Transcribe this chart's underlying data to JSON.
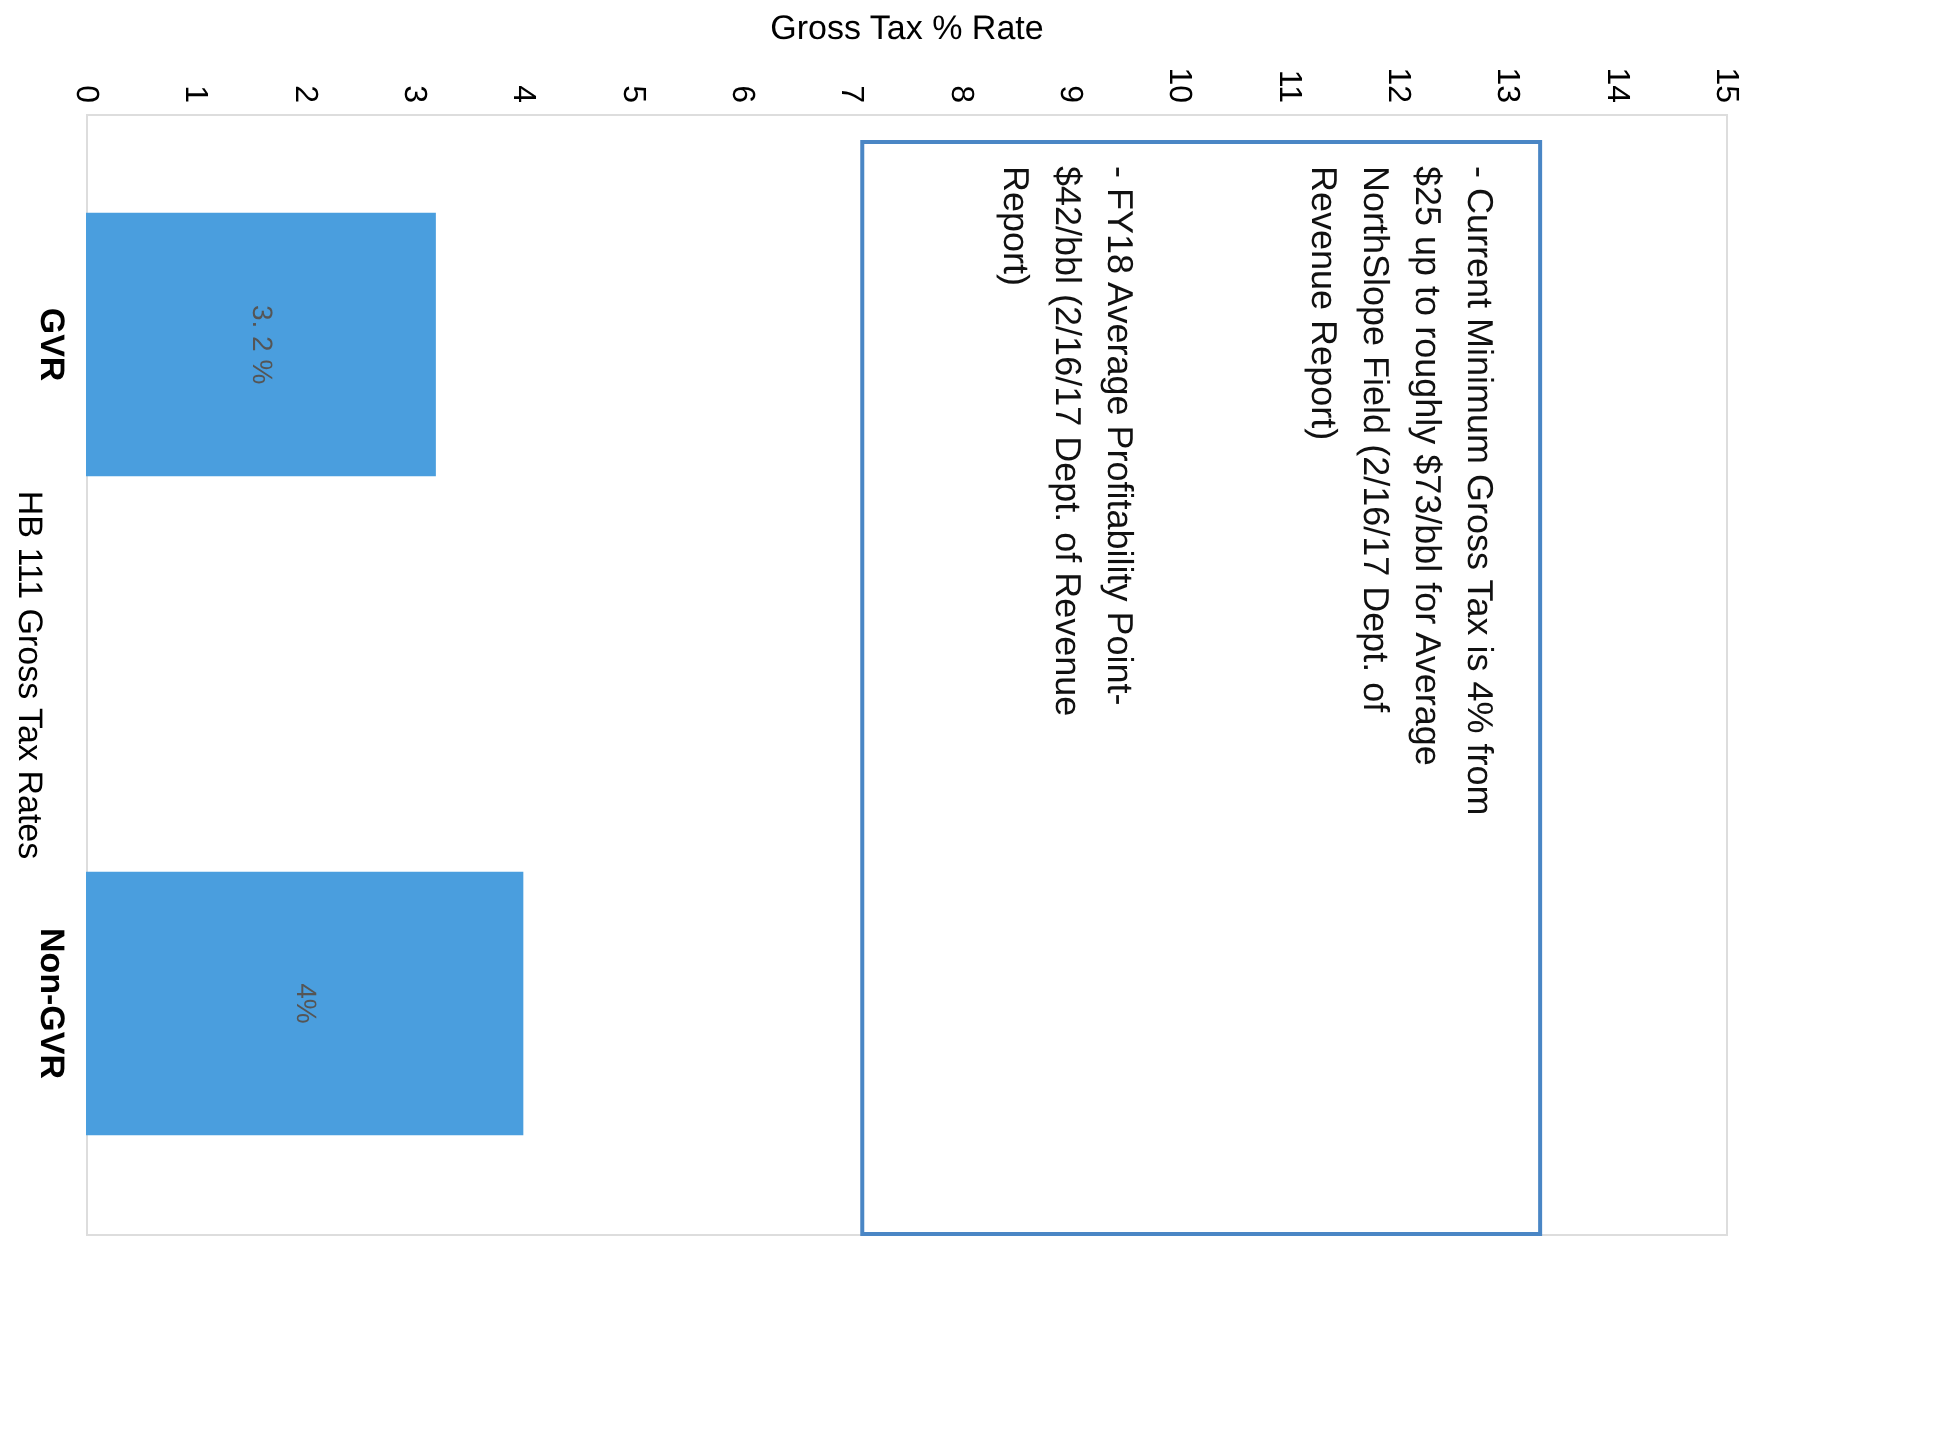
{
  "chart_data": {
    "type": "bar",
    "orientation": "horizontal",
    "xlabel": "Gross Tax % Rate",
    "ylabel": "HB 111 Gross Tax Rates",
    "categories": [
      "GVR",
      "Non-GVR"
    ],
    "values": [
      3.2,
      4
    ],
    "value_labels": [
      "3. 2 %",
      "4%"
    ],
    "color": "#4a9ede",
    "xlim": [
      0,
      15
    ],
    "xticks": [
      0,
      1,
      2,
      3,
      4,
      5,
      6,
      7,
      8,
      9,
      10,
      11,
      12,
      13,
      14,
      15
    ],
    "annotations": [
      "- Current Minimum Gross Tax is 4% from $25 up to roughly $73/bbl for Average NorthSlope Field (2/16/17 Dept. of Revenue Report)",
      "- FY18 Average Profitability Point- $42/bbl (2/16/17 Dept. of Revenue Report)"
    ]
  }
}
